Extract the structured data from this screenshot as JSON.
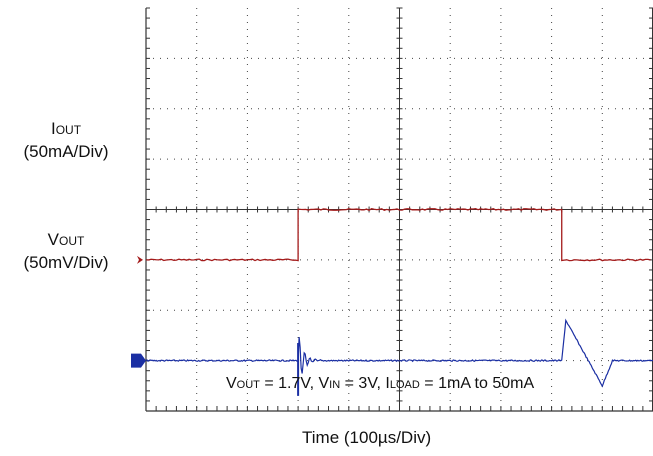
{
  "chart_data": {
    "type": "line",
    "grid": true,
    "xlabel": "Time (100µs/Div)",
    "x_divisions": 10,
    "y_divisions": 8,
    "traces": [
      {
        "name_main": "I",
        "name_sub": "OUT",
        "scale": "(50mA/Div)",
        "color": "#a31a1a",
        "marker_color": "#a31a1a",
        "baseline_div": 3.0,
        "description_points": [
          [
            0,
            0
          ],
          [
            3.0,
            0
          ],
          [
            3.0,
            1.0
          ],
          [
            8.2,
            1.0
          ],
          [
            8.2,
            0
          ],
          [
            10,
            0
          ]
        ],
        "units": "div"
      },
      {
        "name_main": "V",
        "name_sub": "OUT",
        "scale": "(50mV/Div)",
        "color": "#1b2fa3",
        "marker_color": "#1b2fa3",
        "baseline_div": 1.0,
        "transients": [
          {
            "at_div": 3.0,
            "peak_div": 0.35,
            "dip_div": -0.7
          },
          {
            "at_div": 8.2,
            "peak_div": 0.8,
            "dip_div": -0.5
          }
        ],
        "units": "div"
      }
    ],
    "conditions": {
      "v_out_main": "V",
      "v_out_sub": "OUT",
      "v_out_val": "= 1.7V,",
      "v_in_main": "V",
      "v_in_sub": "IN",
      "v_in_val": "= 3V,",
      "i_load_main": "I",
      "i_load_sub": "LOAD",
      "i_load_val": "= 1mA to 50mA"
    }
  }
}
